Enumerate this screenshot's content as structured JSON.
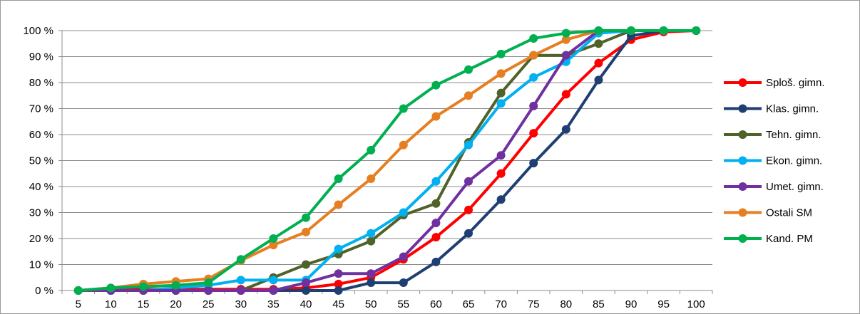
{
  "chart_data": {
    "type": "line",
    "title": "",
    "xlabel": "",
    "ylabel": "",
    "categories": [
      "5",
      "10",
      "15",
      "20",
      "25",
      "30",
      "35",
      "40",
      "45",
      "50",
      "55",
      "60",
      "65",
      "70",
      "75",
      "80",
      "85",
      "90",
      "95",
      "100"
    ],
    "y_tick_labels": [
      "0 %",
      "10 %",
      "20 %",
      "30 %",
      "40 %",
      "50 %",
      "60 %",
      "70 %",
      "80 %",
      "90 %",
      "100 %"
    ],
    "ylim": [
      0,
      100
    ],
    "grid": true,
    "legend_position": "right",
    "series": [
      {
        "name": "Sploš. gimn.",
        "color": "#ff0000",
        "values": [
          0,
          0.5,
          0.5,
          0.5,
          0.5,
          0.5,
          0.5,
          1,
          2.5,
          5,
          12,
          20.5,
          31,
          45,
          60.5,
          75.5,
          87.5,
          96.5,
          99.5,
          100
        ]
      },
      {
        "name": "Klas. gimn.",
        "color": "#1f3f73",
        "values": [
          0,
          0,
          0,
          0,
          0,
          0,
          0,
          0,
          0,
          3,
          3,
          11,
          22,
          35,
          49,
          62,
          81,
          98,
          100,
          100
        ]
      },
      {
        "name": "Tehn. gimn.",
        "color": "#4f6228",
        "values": [
          0,
          0,
          0,
          0,
          0,
          0,
          5,
          10,
          14,
          19,
          29,
          33.5,
          57,
          76,
          90.5,
          90.5,
          95,
          100,
          100,
          100
        ]
      },
      {
        "name": "Ekon. gimn.",
        "color": "#00b0f0",
        "values": [
          0,
          0,
          0,
          1,
          2,
          4,
          4,
          4,
          16,
          22,
          30,
          42,
          56,
          72,
          82,
          88,
          99,
          100,
          100,
          100
        ]
      },
      {
        "name": "Umet. gimn.",
        "color": "#7030a0",
        "values": [
          0,
          0,
          0,
          0,
          0,
          0,
          0,
          3,
          6.5,
          6.5,
          13,
          26,
          42,
          52,
          71,
          90.5,
          100,
          100,
          100,
          100
        ]
      },
      {
        "name": "Ostali SM",
        "color": "#e67e22",
        "values": [
          0,
          1,
          2.5,
          3.5,
          4.5,
          11.5,
          17.5,
          22.5,
          33,
          43,
          56,
          67,
          75,
          83.5,
          90.5,
          96.5,
          100,
          100,
          100,
          100
        ]
      },
      {
        "name": "Kand. PM",
        "color": "#00b050",
        "values": [
          0,
          1,
          1.5,
          2,
          3,
          12,
          20,
          28,
          43,
          54,
          70,
          79,
          85,
          91,
          97,
          99,
          100,
          100,
          100,
          100
        ]
      }
    ]
  }
}
